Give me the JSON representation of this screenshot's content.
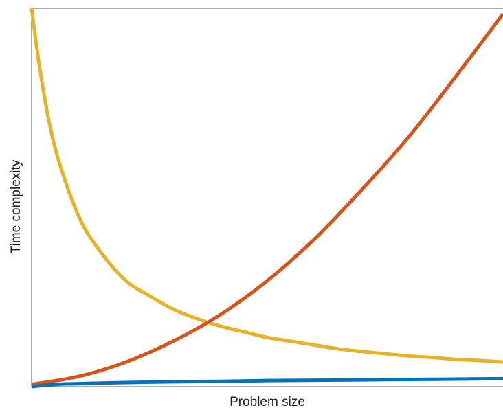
{
  "chart_data": {
    "type": "line",
    "title": "",
    "xlabel": "Problem size",
    "ylabel": "Time complexity",
    "xlim": [
      0,
      1
    ],
    "ylim": [
      0,
      1
    ],
    "grid": false,
    "ticks_shown": false,
    "series": [
      {
        "color": "#E8B226",
        "x": [
          0,
          0.02,
          0.05,
          0.1,
          0.15,
          0.2,
          0.25,
          0.3,
          0.35,
          0.4,
          0.45,
          0.5,
          0.55,
          0.6,
          0.65,
          0.7,
          0.75,
          0.8,
          0.85,
          0.9,
          0.95,
          1.0
        ],
        "values": [
          1.0,
          0.82,
          0.63,
          0.45,
          0.35,
          0.28,
          0.24,
          0.205,
          0.18,
          0.16,
          0.145,
          0.13,
          0.12,
          0.11,
          0.1,
          0.093,
          0.087,
          0.081,
          0.077,
          0.072,
          0.069,
          0.065
        ]
      },
      {
        "color": "#D95319",
        "x": [
          0,
          0.1,
          0.2,
          0.3,
          0.4,
          0.5,
          0.6,
          0.7,
          0.8,
          0.9,
          1.0
        ],
        "values": [
          0.006,
          0.027,
          0.065,
          0.12,
          0.19,
          0.28,
          0.39,
          0.52,
          0.66,
          0.82,
          0.985
        ]
      },
      {
        "color": "#0072BD",
        "x": [
          0,
          0.05,
          0.1,
          0.2,
          0.3,
          0.4,
          0.5,
          0.6,
          0.7,
          0.8,
          0.9,
          1.0
        ],
        "values": [
          0.0,
          0.006,
          0.008,
          0.011,
          0.013,
          0.014,
          0.016,
          0.017,
          0.018,
          0.019,
          0.02,
          0.021
        ]
      }
    ]
  }
}
